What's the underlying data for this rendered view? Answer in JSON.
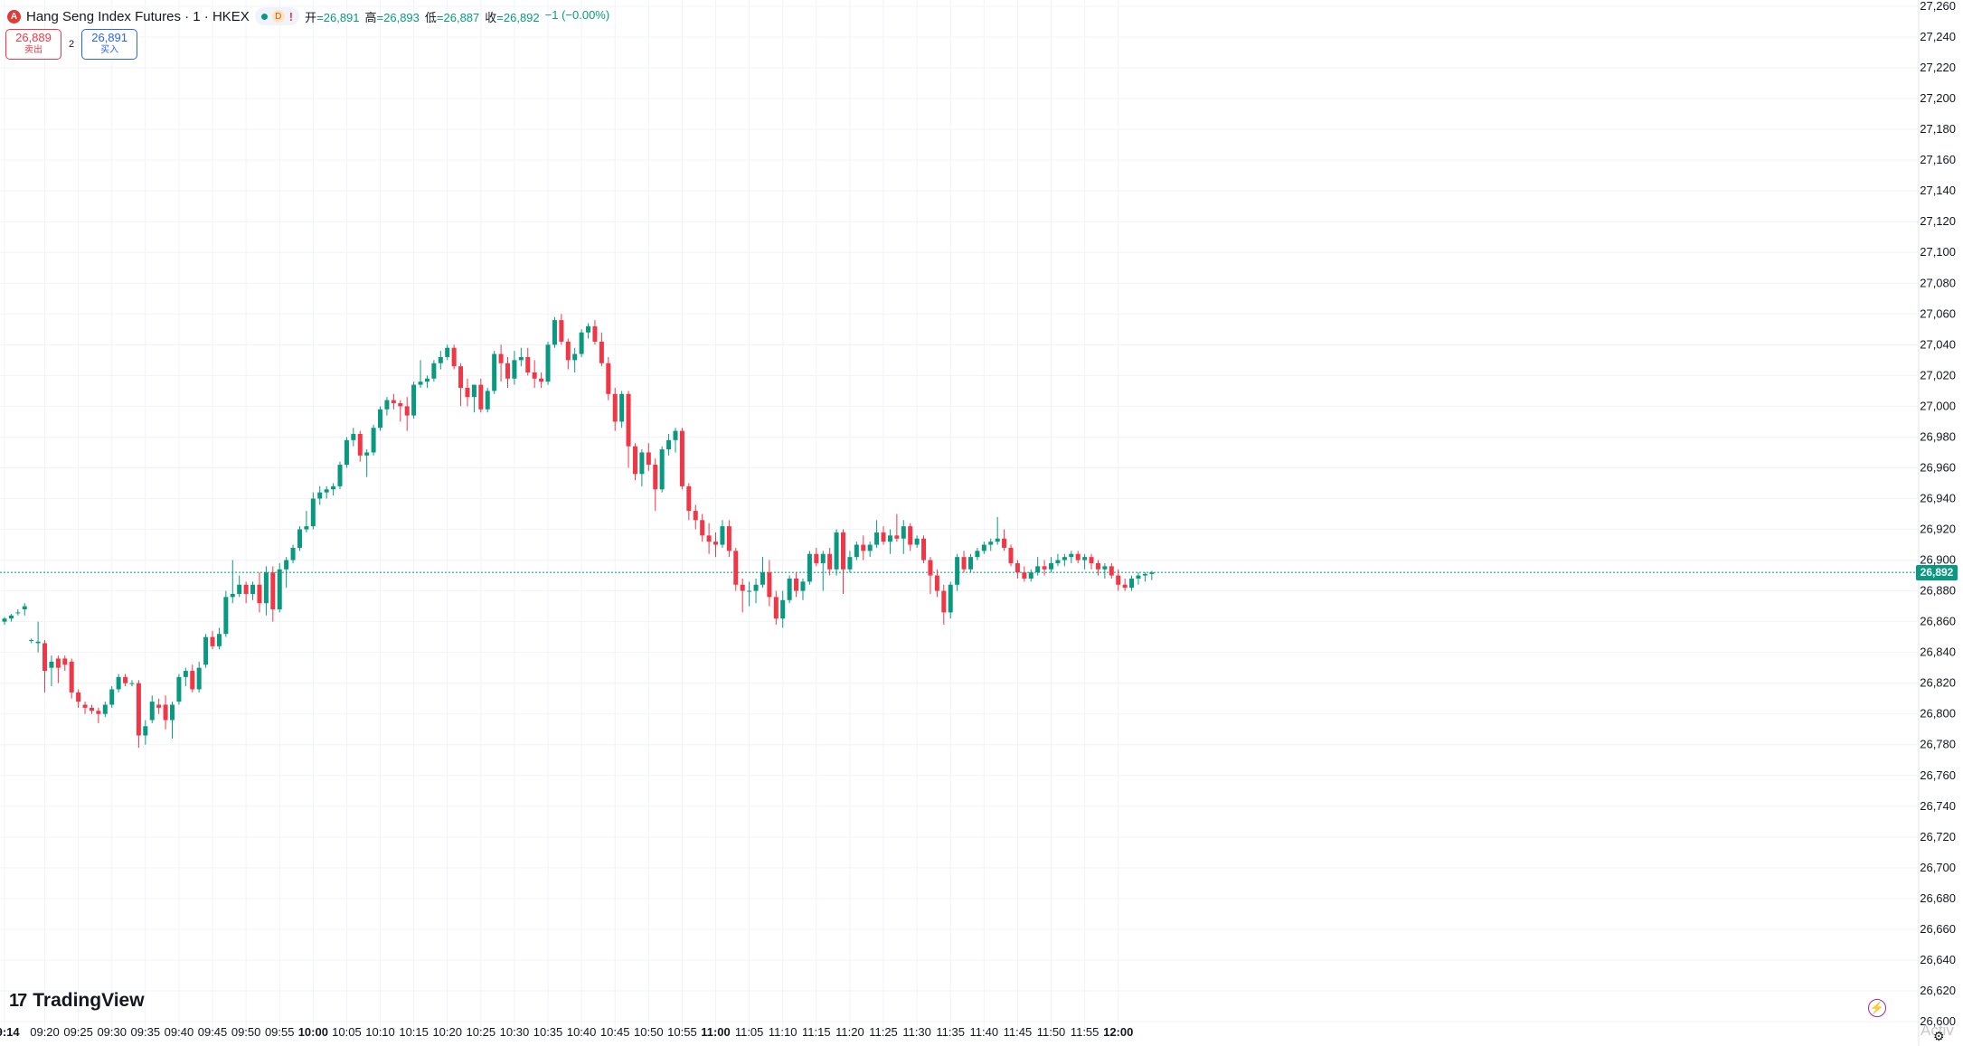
{
  "header": {
    "logo_letter": "A",
    "title": "Hang Seng Index Futures · 1 · HKEX",
    "interval_badge": "D",
    "alert_mark": "!",
    "ohlc": [
      {
        "label": "开",
        "value": "=26,891"
      },
      {
        "label": "高",
        "value": "=26,893"
      },
      {
        "label": "低",
        "value": "=26,887"
      },
      {
        "label": "收",
        "value": "=26,892"
      }
    ],
    "change": "−1 (−0.00%)"
  },
  "quote": {
    "sell_price": "26,889",
    "sell_label": "卖出",
    "spread": "2",
    "buy_price": "26,891",
    "buy_label": "买入"
  },
  "footer": {
    "brand": "TradingView",
    "brand_mark": "17",
    "activate_watermark": "Activ",
    "gear_glyph": "⚙",
    "bolt_glyph": "⚡"
  },
  "colors": {
    "up": "#089981",
    "down": "#f23645",
    "grid": "#f0f3fa",
    "last_price_line": "#089981"
  },
  "chart_data": {
    "type": "candlestick",
    "symbol": "Hang Seng Index Futures",
    "interval": "1",
    "exchange": "HKEX",
    "last_price": 26892,
    "last_price_label": "26,892",
    "ylim": [
      26590,
      27262
    ],
    "y_ticks": [
      26600,
      26620,
      26640,
      26660,
      26680,
      26700,
      26720,
      26740,
      26760,
      26780,
      26800,
      26820,
      26840,
      26860,
      26880,
      26900,
      26920,
      26940,
      26960,
      26980,
      27000,
      27020,
      27040,
      27060,
      27080,
      27100,
      27120,
      27140,
      27160,
      27180,
      27200,
      27220,
      27240,
      27260
    ],
    "first_time_minutes": 554,
    "bar_minutes": 1,
    "x_ticks": [
      {
        "t": 554,
        "label": "09:14",
        "bold": true
      },
      {
        "t": 560,
        "label": "09:20"
      },
      {
        "t": 565,
        "label": "09:25"
      },
      {
        "t": 570,
        "label": "09:30"
      },
      {
        "t": 575,
        "label": "09:35"
      },
      {
        "t": 580,
        "label": "09:40"
      },
      {
        "t": 585,
        "label": "09:45"
      },
      {
        "t": 590,
        "label": "09:50"
      },
      {
        "t": 595,
        "label": "09:55"
      },
      {
        "t": 600,
        "label": "10:00",
        "bold": true
      },
      {
        "t": 605,
        "label": "10:05"
      },
      {
        "t": 610,
        "label": "10:10"
      },
      {
        "t": 615,
        "label": "10:15"
      },
      {
        "t": 620,
        "label": "10:20"
      },
      {
        "t": 625,
        "label": "10:25"
      },
      {
        "t": 630,
        "label": "10:30"
      },
      {
        "t": 635,
        "label": "10:35"
      },
      {
        "t": 640,
        "label": "10:40"
      },
      {
        "t": 645,
        "label": "10:45"
      },
      {
        "t": 650,
        "label": "10:50"
      },
      {
        "t": 655,
        "label": "10:55"
      },
      {
        "t": 660,
        "label": "11:00",
        "bold": true
      },
      {
        "t": 665,
        "label": "11:05"
      },
      {
        "t": 670,
        "label": "11:10"
      },
      {
        "t": 675,
        "label": "11:15"
      },
      {
        "t": 680,
        "label": "11:20"
      },
      {
        "t": 685,
        "label": "11:25"
      },
      {
        "t": 690,
        "label": "11:30"
      },
      {
        "t": 695,
        "label": "11:35"
      },
      {
        "t": 700,
        "label": "11:40"
      },
      {
        "t": 705,
        "label": "11:45"
      },
      {
        "t": 710,
        "label": "11:50"
      },
      {
        "t": 715,
        "label": "11:55"
      },
      {
        "t": 720,
        "label": "12:00",
        "bold": true
      }
    ],
    "ohlc_series": [
      [
        26860,
        26863,
        26858,
        26862
      ],
      [
        26862,
        26865,
        26860,
        26864
      ],
      [
        26866,
        26868,
        26864,
        26866
      ],
      [
        26868,
        26872,
        26864,
        26870
      ],
      [
        26848,
        26849,
        26846,
        26848
      ],
      [
        26846,
        26860,
        26840,
        26847
      ],
      [
        26846,
        26848,
        26814,
        26828
      ],
      [
        26830,
        26838,
        26818,
        26834
      ],
      [
        26836,
        26838,
        26820,
        26830
      ],
      [
        26836,
        26838,
        26828,
        26832
      ],
      [
        26834,
        26836,
        26810,
        26814
      ],
      [
        26814,
        26816,
        26804,
        26808
      ],
      [
        26806,
        26808,
        26800,
        26804
      ],
      [
        26804,
        26806,
        26800,
        26802
      ],
      [
        26802,
        26804,
        26794,
        26800
      ],
      [
        26800,
        26808,
        26798,
        26806
      ],
      [
        26806,
        26818,
        26804,
        26816
      ],
      [
        26816,
        26826,
        26814,
        26824
      ],
      [
        26824,
        26826,
        26818,
        26820
      ],
      [
        26820,
        26822,
        26818,
        26820
      ],
      [
        26820,
        26822,
        26778,
        26786
      ],
      [
        26786,
        26796,
        26780,
        26792
      ],
      [
        26796,
        26812,
        26794,
        26808
      ],
      [
        26806,
        26810,
        26800,
        26804
      ],
      [
        26806,
        26812,
        26790,
        26796
      ],
      [
        26796,
        26808,
        26784,
        26806
      ],
      [
        26808,
        26826,
        26806,
        26824
      ],
      [
        26824,
        26830,
        26818,
        26828
      ],
      [
        26828,
        26832,
        26814,
        26816
      ],
      [
        26816,
        26834,
        26814,
        26830
      ],
      [
        26832,
        26852,
        26830,
        26850
      ],
      [
        26850,
        26854,
        26842,
        26844
      ],
      [
        26844,
        26856,
        26842,
        26852
      ],
      [
        26852,
        26880,
        26850,
        26876
      ],
      [
        26876,
        26900,
        26872,
        26878
      ],
      [
        26878,
        26890,
        26876,
        26884
      ],
      [
        26884,
        26886,
        26872,
        26878
      ],
      [
        26878,
        26886,
        26874,
        26884
      ],
      [
        26884,
        26892,
        26866,
        26872
      ],
      [
        26872,
        26896,
        26864,
        26892
      ],
      [
        26892,
        26896,
        26860,
        26868
      ],
      [
        26868,
        26898,
        26866,
        26894
      ],
      [
        26894,
        26902,
        26882,
        26900
      ],
      [
        26900,
        26910,
        26898,
        26908
      ],
      [
        26908,
        26922,
        26906,
        26920
      ],
      [
        26920,
        26932,
        26918,
        26922
      ],
      [
        26922,
        26944,
        26920,
        26940
      ],
      [
        26940,
        26948,
        26936,
        26944
      ],
      [
        26944,
        26948,
        26940,
        26946
      ],
      [
        26946,
        26950,
        26942,
        26948
      ],
      [
        26948,
        26964,
        26946,
        26962
      ],
      [
        26962,
        26980,
        26960,
        26978
      ],
      [
        26978,
        26986,
        26974,
        26982
      ],
      [
        26982,
        26984,
        26964,
        26968
      ],
      [
        26968,
        26972,
        26954,
        26970
      ],
      [
        26970,
        26988,
        26968,
        26986
      ],
      [
        26986,
        27000,
        26984,
        26998
      ],
      [
        26998,
        27006,
        26994,
        27004
      ],
      [
        27004,
        27008,
        26998,
        27002
      ],
      [
        27002,
        27004,
        26990,
        27000
      ],
      [
        27000,
        27006,
        26984,
        26994
      ],
      [
        26994,
        27016,
        26992,
        27014
      ],
      [
        27014,
        27030,
        27012,
        27016
      ],
      [
        27016,
        27020,
        27012,
        27018
      ],
      [
        27018,
        27030,
        27016,
        27028
      ],
      [
        27028,
        27036,
        27024,
        27032
      ],
      [
        27032,
        27040,
        27030,
        27038
      ],
      [
        27038,
        27040,
        27024,
        27026
      ],
      [
        27026,
        27028,
        27000,
        27012
      ],
      [
        27012,
        27018,
        27000,
        27006
      ],
      [
        27006,
        27014,
        26996,
        27014
      ],
      [
        27014,
        27018,
        26996,
        26998
      ],
      [
        26998,
        27012,
        26996,
        27010
      ],
      [
        27010,
        27036,
        27008,
        27034
      ],
      [
        27034,
        27040,
        27016,
        27028
      ],
      [
        27028,
        27032,
        27012,
        27018
      ],
      [
        27018,
        27036,
        27014,
        27030
      ],
      [
        27030,
        27038,
        27026,
        27032
      ],
      [
        27032,
        27038,
        27020,
        27022
      ],
      [
        27022,
        27030,
        27012,
        27018
      ],
      [
        27018,
        27022,
        27012,
        27016
      ],
      [
        27016,
        27042,
        27014,
        27040
      ],
      [
        27040,
        27058,
        27038,
        27056
      ],
      [
        27056,
        27060,
        27040,
        27042
      ],
      [
        27042,
        27044,
        27024,
        27030
      ],
      [
        27030,
        27038,
        27022,
        27034
      ],
      [
        27034,
        27050,
        27032,
        27048
      ],
      [
        27048,
        27054,
        27044,
        27052
      ],
      [
        27052,
        27056,
        27040,
        27042
      ],
      [
        27042,
        27048,
        27026,
        27028
      ],
      [
        27028,
        27032,
        27004,
        27008
      ],
      [
        27008,
        27012,
        26984,
        26990
      ],
      [
        26990,
        27010,
        26986,
        27008
      ],
      [
        27008,
        27010,
        26960,
        26974
      ],
      [
        26974,
        26976,
        26952,
        26956
      ],
      [
        26956,
        26972,
        26948,
        26970
      ],
      [
        26970,
        26976,
        26958,
        26962
      ],
      [
        26962,
        26966,
        26932,
        26946
      ],
      [
        26946,
        26974,
        26944,
        26972
      ],
      [
        26972,
        26982,
        26968,
        26978
      ],
      [
        26978,
        26986,
        26970,
        26984
      ],
      [
        26984,
        26986,
        26946,
        26948
      ],
      [
        26948,
        26950,
        26926,
        26932
      ],
      [
        26932,
        26936,
        26920,
        26926
      ],
      [
        26926,
        26930,
        26912,
        26916
      ],
      [
        26916,
        26924,
        26904,
        26912
      ],
      [
        26912,
        26918,
        26902,
        26910
      ],
      [
        26910,
        26926,
        26908,
        26922
      ],
      [
        26922,
        26926,
        26902,
        26906
      ],
      [
        26906,
        26908,
        26880,
        26884
      ],
      [
        26884,
        26888,
        26866,
        26880
      ],
      [
        26880,
        26886,
        26870,
        26880
      ],
      [
        26880,
        26888,
        26872,
        26884
      ],
      [
        26884,
        26902,
        26882,
        26892
      ],
      [
        26892,
        26900,
        26870,
        26876
      ],
      [
        26876,
        26880,
        26858,
        26862
      ],
      [
        26862,
        26880,
        26856,
        26874
      ],
      [
        26874,
        26890,
        26872,
        26888
      ],
      [
        26888,
        26892,
        26876,
        26880
      ],
      [
        26880,
        26888,
        26874,
        26886
      ],
      [
        26886,
        26906,
        26884,
        26904
      ],
      [
        26904,
        26908,
        26896,
        26898
      ],
      [
        26898,
        26906,
        26880,
        26904
      ],
      [
        26904,
        26908,
        26890,
        26894
      ],
      [
        26894,
        26920,
        26890,
        26918
      ],
      [
        26918,
        26920,
        26878,
        26894
      ],
      [
        26894,
        26906,
        26892,
        26902
      ],
      [
        26902,
        26912,
        26900,
        26910
      ],
      [
        26910,
        26916,
        26900,
        26906
      ],
      [
        26906,
        26912,
        26902,
        26910
      ],
      [
        26910,
        26926,
        26908,
        26918
      ],
      [
        26918,
        26922,
        26910,
        26912
      ],
      [
        26912,
        26920,
        26904,
        26916
      ],
      [
        26916,
        26930,
        26912,
        26914
      ],
      [
        26914,
        26926,
        26904,
        26922
      ],
      [
        26922,
        26924,
        26906,
        26910
      ],
      [
        26910,
        26916,
        26908,
        26914
      ],
      [
        26914,
        26916,
        26898,
        26900
      ],
      [
        26900,
        26902,
        26878,
        26890
      ],
      [
        26890,
        26894,
        26876,
        26880
      ],
      [
        26880,
        26884,
        26858,
        26866
      ],
      [
        26866,
        26886,
        26862,
        26884
      ],
      [
        26884,
        26904,
        26880,
        26902
      ],
      [
        26902,
        26906,
        26892,
        26894
      ],
      [
        26894,
        26904,
        26892,
        26902
      ],
      [
        26902,
        26908,
        26900,
        26906
      ],
      [
        26906,
        26912,
        26904,
        26910
      ],
      [
        26910,
        26914,
        26906,
        26912
      ],
      [
        26912,
        26928,
        26910,
        26914
      ],
      [
        26914,
        26920,
        26906,
        26908
      ],
      [
        26908,
        26910,
        26896,
        26898
      ],
      [
        26898,
        26900,
        26888,
        26892
      ],
      [
        26892,
        26896,
        26886,
        26888
      ],
      [
        26888,
        26894,
        26886,
        26892
      ],
      [
        26892,
        26902,
        26890,
        26896
      ],
      [
        26896,
        26900,
        26890,
        26894
      ],
      [
        26894,
        26902,
        26892,
        26898
      ],
      [
        26898,
        26904,
        26896,
        26900
      ],
      [
        26900,
        26904,
        26896,
        26902
      ],
      [
        26902,
        26906,
        26898,
        26904
      ],
      [
        26904,
        26906,
        26898,
        26900
      ],
      [
        26900,
        26904,
        26894,
        26902
      ],
      [
        26902,
        26904,
        26894,
        26898
      ],
      [
        26898,
        26900,
        26890,
        26894
      ],
      [
        26894,
        26898,
        26888,
        26896
      ],
      [
        26896,
        26898,
        26888,
        26890
      ],
      [
        26890,
        26894,
        26880,
        26884
      ],
      [
        26884,
        26888,
        26880,
        26882
      ],
      [
        26882,
        26890,
        26880,
        26888
      ],
      [
        26888,
        26892,
        26884,
        26890
      ],
      [
        26890,
        26892,
        26886,
        26891
      ],
      [
        26891,
        26893,
        26887,
        26892
      ]
    ]
  }
}
